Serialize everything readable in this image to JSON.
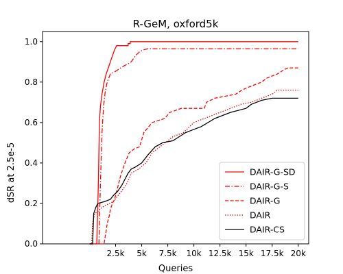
{
  "chart_data": {
    "type": "line",
    "title": "R-GeM, oxford5k",
    "xlabel": "Queries",
    "ylabel": "dSR at 2.5e-5",
    "xlim": [
      -4500,
      21000
    ],
    "ylim": [
      0.0,
      1.05
    ],
    "xticks": [
      2500,
      5000,
      7500,
      10000,
      12500,
      15000,
      17500,
      20000
    ],
    "xtick_labels": [
      "2.5k",
      "5k",
      "7.5k",
      "10k",
      "12.5k",
      "15k",
      "17.5k",
      "20k"
    ],
    "yticks": [
      0.0,
      0.2,
      0.4,
      0.6,
      0.8,
      1.0
    ],
    "ytick_labels": [
      "0.0",
      "0.2",
      "0.4",
      "0.6",
      "0.8",
      "1.0"
    ],
    "grid": false,
    "legend_position": "lower right",
    "series": [
      {
        "name": "DAIR-G-SD",
        "color": "#ff0000",
        "dash": "solid",
        "points": [
          [
            0,
            0.0
          ],
          [
            700,
            0.0
          ],
          [
            850,
            0.3
          ],
          [
            950,
            0.6
          ],
          [
            1050,
            0.68
          ],
          [
            1200,
            0.74
          ],
          [
            1400,
            0.8
          ],
          [
            1600,
            0.84
          ],
          [
            1800,
            0.87
          ],
          [
            2000,
            0.9
          ],
          [
            2200,
            0.93
          ],
          [
            2400,
            0.96
          ],
          [
            2600,
            0.98
          ],
          [
            3700,
            0.98
          ],
          [
            3700,
            0.99
          ],
          [
            3900,
            0.99
          ],
          [
            3900,
            1.0
          ],
          [
            20000,
            1.0
          ]
        ]
      },
      {
        "name": "DAIR-G-S",
        "color": "#ff0000",
        "dash": "dashdot",
        "points": [
          [
            0,
            0.0
          ],
          [
            900,
            0.0
          ],
          [
            1050,
            0.3
          ],
          [
            1200,
            0.55
          ],
          [
            1350,
            0.68
          ],
          [
            1500,
            0.75
          ],
          [
            1700,
            0.8
          ],
          [
            2000,
            0.84
          ],
          [
            2400,
            0.85
          ],
          [
            2700,
            0.86
          ],
          [
            3000,
            0.87
          ],
          [
            3300,
            0.88
          ],
          [
            3700,
            0.89
          ],
          [
            4000,
            0.9
          ],
          [
            4400,
            0.93
          ],
          [
            4800,
            0.95
          ],
          [
            5200,
            0.96
          ],
          [
            5600,
            0.965
          ],
          [
            20000,
            0.965
          ]
        ]
      },
      {
        "name": "DAIR-G",
        "color": "#ff0000",
        "dash": "dashed",
        "points": [
          [
            0,
            0.0
          ],
          [
            1400,
            0.0
          ],
          [
            1450,
            0.02
          ],
          [
            1550,
            0.05
          ],
          [
            1700,
            0.1
          ],
          [
            1900,
            0.14
          ],
          [
            2000,
            0.17
          ],
          [
            2200,
            0.2
          ],
          [
            2400,
            0.22
          ],
          [
            2700,
            0.28
          ],
          [
            3000,
            0.34
          ],
          [
            3400,
            0.4
          ],
          [
            3800,
            0.45
          ],
          [
            4300,
            0.47
          ],
          [
            4800,
            0.48
          ],
          [
            5200,
            0.55
          ],
          [
            6000,
            0.6
          ],
          [
            7200,
            0.62
          ],
          [
            7700,
            0.65
          ],
          [
            8800,
            0.67
          ],
          [
            11000,
            0.67
          ],
          [
            11200,
            0.7
          ],
          [
            12000,
            0.72
          ],
          [
            14000,
            0.74
          ],
          [
            14600,
            0.76
          ],
          [
            15000,
            0.77
          ],
          [
            16500,
            0.8
          ],
          [
            17000,
            0.82
          ],
          [
            18000,
            0.84
          ],
          [
            18600,
            0.86
          ],
          [
            19000,
            0.87
          ],
          [
            20000,
            0.87
          ]
        ]
      },
      {
        "name": "DAIR",
        "color": "#ff0000",
        "dash": "dotted",
        "points": [
          [
            0,
            0.0
          ],
          [
            200,
            0.0
          ],
          [
            300,
            0.1
          ],
          [
            500,
            0.15
          ],
          [
            800,
            0.16
          ],
          [
            1200,
            0.18
          ],
          [
            1500,
            0.19
          ],
          [
            1900,
            0.2
          ],
          [
            2300,
            0.21
          ],
          [
            2600,
            0.23
          ],
          [
            2900,
            0.25
          ],
          [
            3200,
            0.27
          ],
          [
            3600,
            0.3
          ],
          [
            4000,
            0.35
          ],
          [
            4700,
            0.37
          ],
          [
            5400,
            0.4
          ],
          [
            6000,
            0.45
          ],
          [
            7000,
            0.49
          ],
          [
            8000,
            0.53
          ],
          [
            9000,
            0.55
          ],
          [
            10000,
            0.6
          ],
          [
            11000,
            0.62
          ],
          [
            12500,
            0.65
          ],
          [
            14500,
            0.69
          ],
          [
            15500,
            0.7
          ],
          [
            16500,
            0.72
          ],
          [
            17500,
            0.74
          ],
          [
            18000,
            0.76
          ],
          [
            20000,
            0.76
          ]
        ]
      },
      {
        "name": "DAIR-CS",
        "color": "#000000",
        "dash": "solid",
        "points": [
          [
            0,
            0.0
          ],
          [
            300,
            0.0
          ],
          [
            400,
            0.15
          ],
          [
            600,
            0.18
          ],
          [
            800,
            0.2
          ],
          [
            1500,
            0.21
          ],
          [
            2000,
            0.22
          ],
          [
            2300,
            0.24
          ],
          [
            2700,
            0.26
          ],
          [
            3100,
            0.29
          ],
          [
            3400,
            0.32
          ],
          [
            3700,
            0.35
          ],
          [
            4000,
            0.37
          ],
          [
            4400,
            0.38
          ],
          [
            5000,
            0.4
          ],
          [
            5600,
            0.44
          ],
          [
            6300,
            0.48
          ],
          [
            7000,
            0.5
          ],
          [
            8000,
            0.51
          ],
          [
            8600,
            0.53
          ],
          [
            9200,
            0.55
          ],
          [
            9700,
            0.56
          ],
          [
            10700,
            0.58
          ],
          [
            12000,
            0.62
          ],
          [
            13500,
            0.65
          ],
          [
            15000,
            0.67
          ],
          [
            15500,
            0.69
          ],
          [
            16500,
            0.71
          ],
          [
            17500,
            0.72
          ],
          [
            20000,
            0.72
          ]
        ]
      }
    ]
  }
}
